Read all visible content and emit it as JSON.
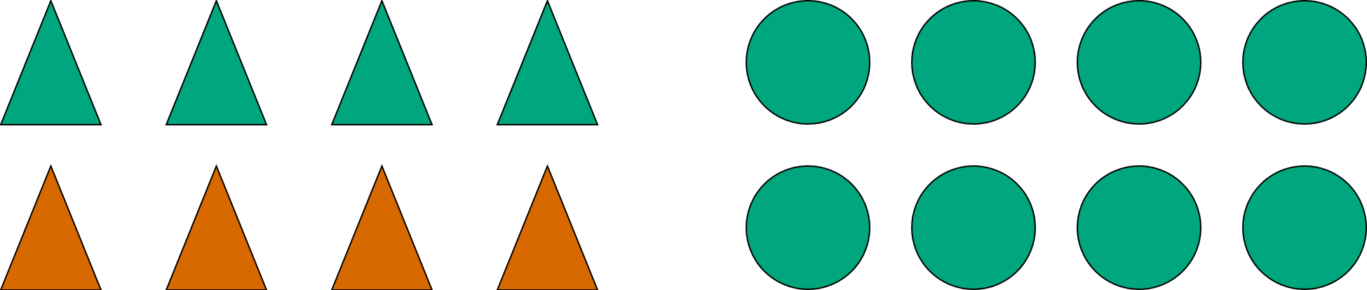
{
  "colors": {
    "green": "#00a67e",
    "orange": "#d86800",
    "stroke": "#000000"
  },
  "groups": [
    {
      "name": "triangles",
      "rows": [
        {
          "shape": "triangle",
          "color": "green",
          "count": 4
        },
        {
          "shape": "triangle",
          "color": "orange",
          "count": 4
        }
      ]
    },
    {
      "name": "circles",
      "rows": [
        {
          "shape": "circle",
          "color": "green",
          "count": 4
        },
        {
          "shape": "circle",
          "color": "green",
          "count": 4
        }
      ]
    }
  ]
}
